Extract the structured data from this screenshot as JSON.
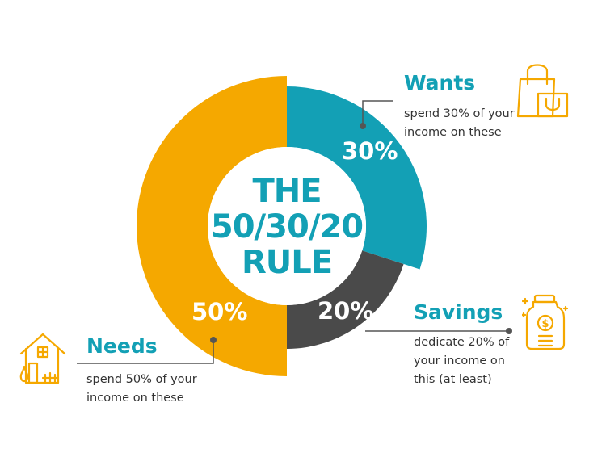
{
  "chart_data": {
    "type": "pie",
    "categories": [
      "Needs",
      "Wants",
      "Savings"
    ],
    "values": [
      50,
      30,
      20
    ],
    "value_labels": [
      "50%",
      "30%",
      "20%"
    ],
    "colors": [
      "#f5a800",
      "#13a0b5",
      "#4a4a4a"
    ],
    "center_title": [
      "THE",
      "50/30/20",
      "RULE"
    ],
    "legend": "callouts"
  },
  "callouts": {
    "wants": {
      "title": "Wants",
      "desc": [
        "spend 30% of your",
        "income on these"
      ],
      "icon": "shopping-bags-icon"
    },
    "savings": {
      "title": "Savings",
      "desc": [
        "dedicate 20% of",
        "your income on",
        "this (at least)"
      ],
      "icon": "money-jar-icon"
    },
    "needs": {
      "title": "Needs",
      "desc": [
        "spend 50% of your",
        "income on these"
      ],
      "icon": "house-icon"
    }
  },
  "colors": {
    "accent": "#13a0b5",
    "icon": "#f5a800",
    "text": "#333333",
    "connector": "#555555"
  }
}
